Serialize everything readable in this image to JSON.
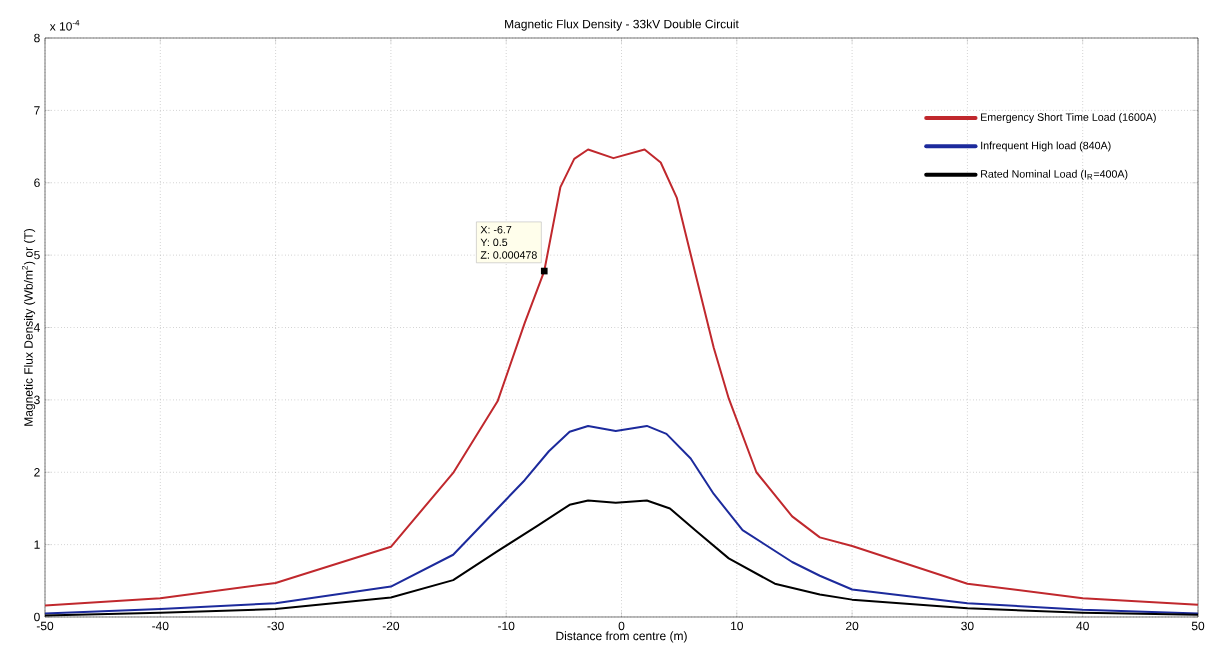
{
  "chart_data": {
    "type": "line",
    "title": "Magnetic Flux Density - 33kV Double Circuit",
    "xlabel": "Distance from centre (m)",
    "ylabel": "Magnetic Flux Density (Wb/m$^{2}$) or (T)",
    "annotations": [
      "x 10$^{-4}$",
      "X: -6.7",
      "Y: 0.5",
      {
        "text": "Z: 0.000478",
        "x": -6.7,
        "y": 4.78
      }
    ],
    "xlim": [
      -50,
      50
    ],
    "ylim": [
      0,
      8
    ],
    "xticks": [
      -50,
      -40,
      -30,
      -20,
      -10,
      0,
      10,
      20,
      30,
      40,
      50
    ],
    "yticks": [
      0,
      1,
      2,
      3,
      4,
      5,
      6,
      7,
      8
    ],
    "grid": true,
    "legend": "top right",
    "line_style": "solid",
    "marker": "none",
    "series": [
      {
        "name": "Emergency Short Time Load (1600A)",
        "color": "#c0282d",
        "x": [
          -50,
          -40,
          -30,
          -20,
          -14.6,
          -10.75,
          -8.4,
          -6.7,
          -5.3,
          -4.1,
          -2.9,
          -0.7,
          2.0,
          3.4,
          4.8,
          6.4,
          8.0,
          9.3,
          11.7,
          14.8,
          17.2,
          20,
          30,
          40,
          50
        ],
        "values": [
          0.16,
          0.26,
          0.47,
          0.97,
          1.99,
          2.98,
          4.06,
          4.78,
          5.94,
          6.33,
          6.46,
          6.34,
          6.46,
          6.28,
          5.79,
          4.75,
          3.72,
          3.02,
          2.0,
          1.39,
          1.1,
          0.98,
          0.46,
          0.26,
          0.17
        ]
      },
      {
        "name": "Infrequent High load (840A)",
        "color": "#1c2a9c",
        "x": [
          -50,
          -40,
          -30,
          -20,
          -14.6,
          -10.75,
          -8.4,
          -6.3,
          -4.5,
          -2.9,
          -0.5,
          2.2,
          3.9,
          6.0,
          8.0,
          10.5,
          14.8,
          17.2,
          20,
          30,
          40,
          50
        ],
        "values": [
          0.05,
          0.11,
          0.19,
          0.42,
          0.86,
          1.5,
          1.89,
          2.29,
          2.56,
          2.64,
          2.57,
          2.64,
          2.53,
          2.19,
          1.7,
          1.2,
          0.76,
          0.57,
          0.38,
          0.19,
          0.1,
          0.05
        ]
      },
      {
        "name": "Rated Nominal Load (I$_{R}$=400A)",
        "color": "#000000",
        "x": [
          -50,
          -40,
          -30,
          -20,
          -14.6,
          -10.75,
          -7.3,
          -4.5,
          -2.9,
          -0.5,
          2.2,
          4.2,
          6.4,
          9.3,
          13.3,
          17.2,
          20,
          30,
          40,
          50
        ],
        "values": [
          0.02,
          0.06,
          0.11,
          0.27,
          0.51,
          0.91,
          1.26,
          1.55,
          1.61,
          1.58,
          1.61,
          1.5,
          1.2,
          0.81,
          0.46,
          0.31,
          0.24,
          0.12,
          0.06,
          0.03
        ]
      }
    ]
  }
}
